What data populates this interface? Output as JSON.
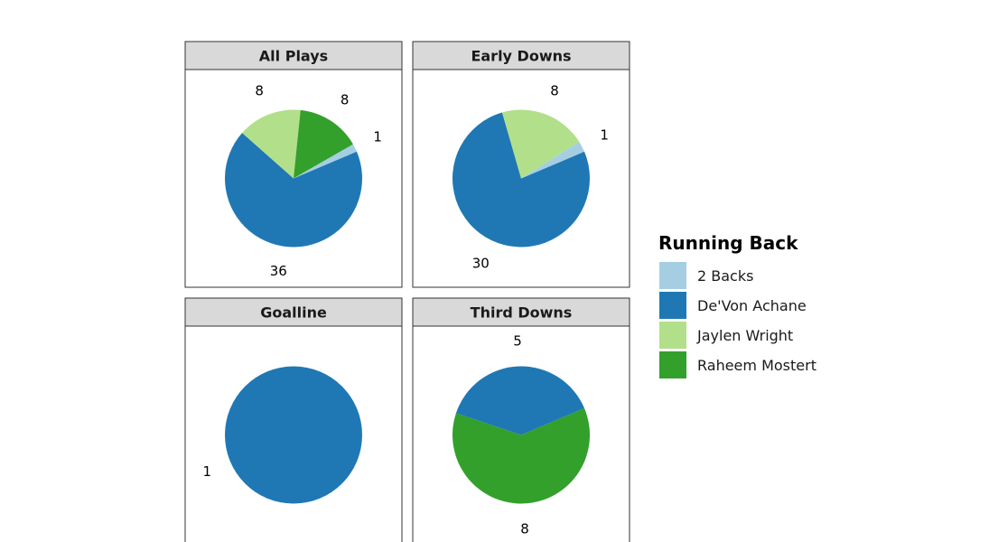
{
  "chart_data": {
    "type": "pie",
    "facets": [
      {
        "title": "All Plays",
        "slices": [
          {
            "category": "De'Von Achane",
            "value": 36
          },
          {
            "category": "Jaylen Wright",
            "value": 8
          },
          {
            "category": "Raheem Mostert",
            "value": 8
          },
          {
            "category": "2 Backs",
            "value": 1
          }
        ]
      },
      {
        "title": "Early Downs",
        "slices": [
          {
            "category": "De'Von Achane",
            "value": 30
          },
          {
            "category": "Jaylen Wright",
            "value": 8
          },
          {
            "category": "2 Backs",
            "value": 1
          }
        ]
      },
      {
        "title": "Goalline",
        "slices": [
          {
            "category": "De'Von Achane",
            "value": 1
          }
        ]
      },
      {
        "title": "Third Downs",
        "slices": [
          {
            "category": "Raheem Mostert",
            "value": 8
          },
          {
            "category": "De'Von Achane",
            "value": 5
          }
        ]
      }
    ],
    "legend": {
      "title": "Running Back",
      "position": "right",
      "entries": [
        {
          "name": "2 Backs",
          "color": "#a6cee3"
        },
        {
          "name": "De'Von Achane",
          "color": "#1f78b4"
        },
        {
          "name": "Jaylen Wright",
          "color": "#b2df8a"
        },
        {
          "name": "Raheem Mostert",
          "color": "#33a02c"
        }
      ]
    }
  }
}
